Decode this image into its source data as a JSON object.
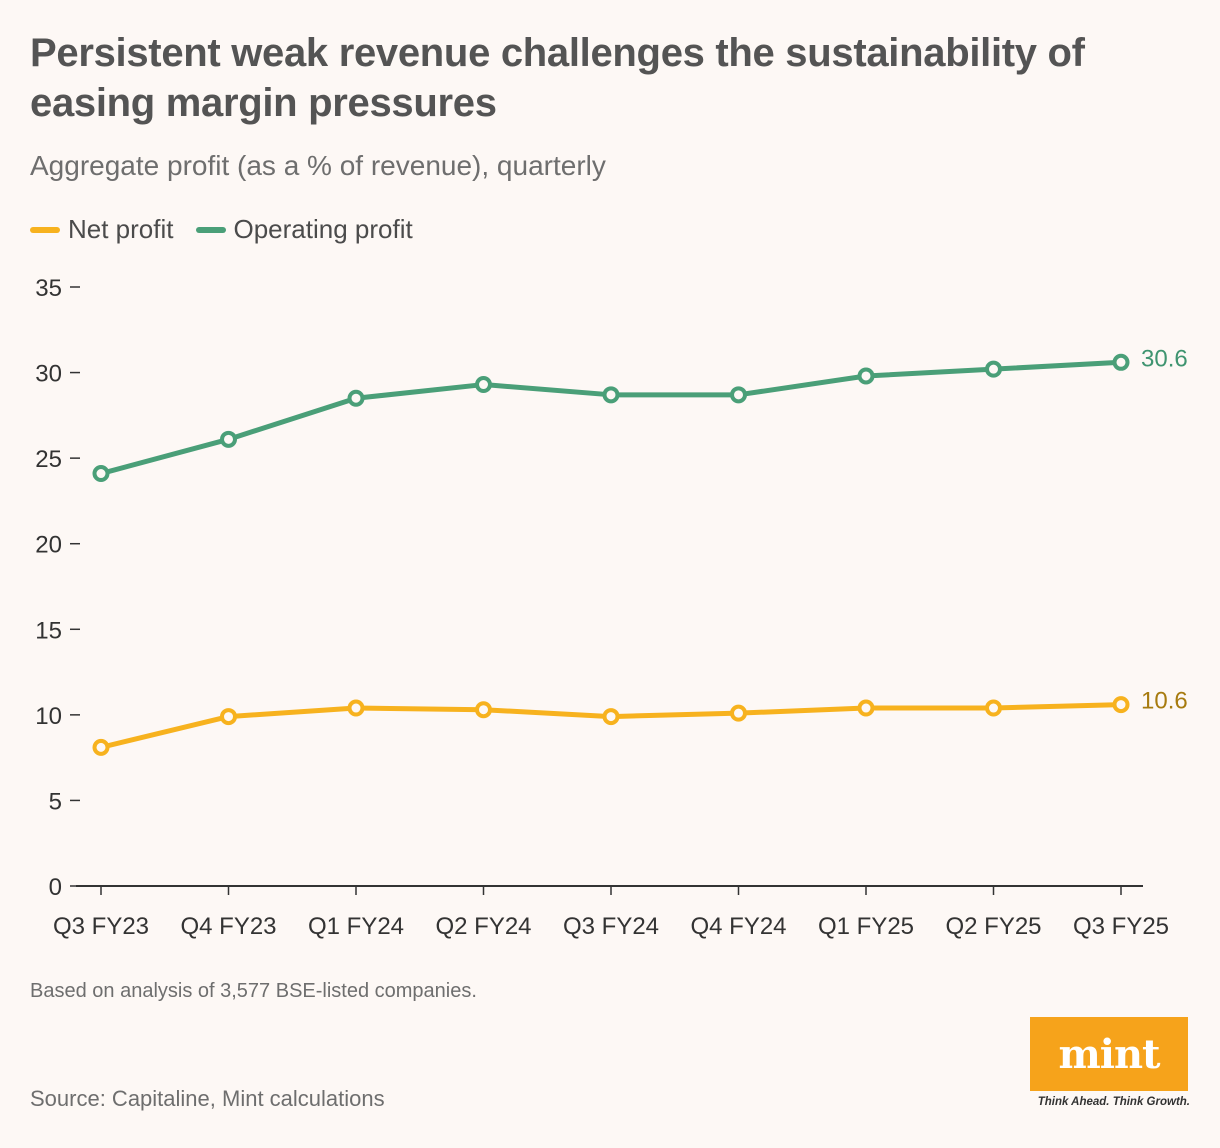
{
  "title": "Persistent weak revenue challenges the sustainability of easing margin pressures",
  "subtitle": "Aggregate profit (as a % of revenue), quarterly",
  "note": "Based on analysis of 3,577 BSE-listed companies.",
  "source": "Source: Capitaline, Mint calculations",
  "logo": {
    "text": "mint",
    "tagline": "Think Ahead. Think Growth.",
    "color": "#f6a31b"
  },
  "chart_data": {
    "type": "line",
    "categories": [
      "Q3 FY23",
      "Q4 FY23",
      "Q1 FY24",
      "Q2 FY24",
      "Q3 FY24",
      "Q4 FY24",
      "Q1 FY25",
      "Q2 FY25",
      "Q3 FY25"
    ],
    "series": [
      {
        "name": "Net profit",
        "color": "#f7b21e",
        "label_color": "#a77b0f",
        "values": [
          8.1,
          9.9,
          10.4,
          10.3,
          9.9,
          10.1,
          10.4,
          10.4,
          10.6
        ],
        "end_label": "10.6"
      },
      {
        "name": "Operating profit",
        "color": "#4a9f78",
        "label_color": "#3f9470",
        "values": [
          24.1,
          26.1,
          28.5,
          29.3,
          28.7,
          28.7,
          29.8,
          30.2,
          30.6
        ],
        "end_label": "30.6"
      }
    ],
    "yticks": [
      "0",
      "5",
      "10",
      "15",
      "20",
      "25",
      "30",
      "35"
    ],
    "ylim": [
      0,
      35
    ],
    "legend": "top-left",
    "grid": false
  }
}
